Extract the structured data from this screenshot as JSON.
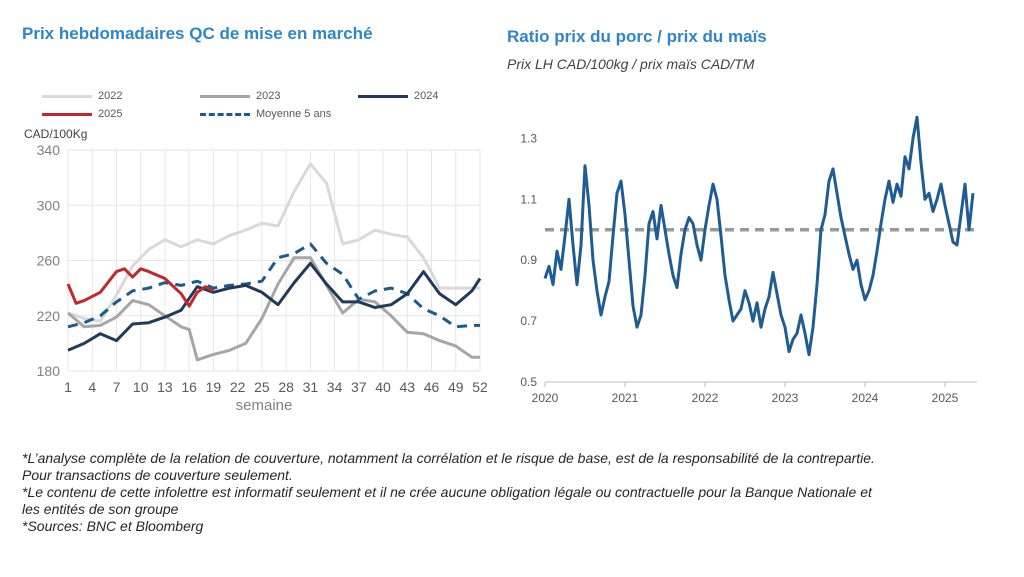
{
  "left": {
    "title": "Prix hebdomadaires QC de mise en marché",
    "unit_label": "CAD/100Kg",
    "legend": [
      {
        "label": "2022",
        "color": "#d9d9d9",
        "dashed": false
      },
      {
        "label": "2023",
        "color": "#a6a6a6",
        "dashed": false
      },
      {
        "label": "2024",
        "color": "#1f3a5a",
        "dashed": false
      },
      {
        "label": "2025",
        "color": "#c0282d",
        "dashed": false
      },
      {
        "label": "Moyenne 5 ans",
        "color": "#1b5a8c",
        "dashed": true
      }
    ]
  },
  "right": {
    "title": "Ratio prix du porc / prix du maïs",
    "subtitle": "Prix LH CAD/100kg / prix maïs CAD/TM"
  },
  "footnotes": [
    "*L’analyse complète de la relation de couverture, notamment la corrélation et le risque de base, est de la responsabilité de la contrepartie. Pour transactions de couverture seulement.",
    "*Le contenu de cette infolettre est informatif seulement et il ne crée aucune obligation légale ou contractuelle pour la Banque Nationale et les entités de son groupe",
    "*Sources: BNC et Bloomberg"
  ],
  "chart_data": [
    {
      "type": "line",
      "title": "Prix hebdomadaires QC de mise en marché",
      "ylabel": "CAD/100Kg",
      "xlabel": "semaine",
      "ylim": [
        180,
        340
      ],
      "xlim": [
        1,
        52
      ],
      "yticks": [
        180,
        220,
        260,
        300,
        340
      ],
      "xticks": [
        1,
        4,
        7,
        10,
        13,
        16,
        19,
        22,
        25,
        28,
        31,
        34,
        37,
        40,
        43,
        46,
        49,
        52
      ],
      "legend_position": "top",
      "grid": true,
      "series": [
        {
          "name": "2022",
          "color": "#d9d9d9",
          "x": [
            1,
            3,
            5,
            7,
            9,
            11,
            13,
            15,
            17,
            19,
            21,
            23,
            25,
            27,
            29,
            31,
            33,
            35,
            37,
            39,
            41,
            43,
            45,
            47,
            49,
            51,
            52
          ],
          "values": [
            222,
            218,
            216,
            235,
            256,
            268,
            275,
            270,
            275,
            272,
            278,
            282,
            287,
            285,
            310,
            330,
            316,
            272,
            275,
            282,
            279,
            277,
            262,
            240,
            240,
            240,
            240
          ]
        },
        {
          "name": "2023",
          "color": "#a6a6a6",
          "x": [
            1,
            3,
            5,
            7,
            9,
            11,
            13,
            15,
            16,
            17,
            19,
            21,
            23,
            25,
            27,
            29,
            31,
            33,
            35,
            37,
            39,
            41,
            43,
            45,
            47,
            49,
            51,
            52
          ],
          "values": [
            222,
            212,
            213,
            219,
            231,
            228,
            220,
            212,
            210,
            188,
            192,
            195,
            200,
            218,
            243,
            262,
            262,
            242,
            222,
            232,
            230,
            220,
            208,
            207,
            202,
            198,
            190,
            190
          ]
        },
        {
          "name": "2024",
          "color": "#1f3a5a",
          "x": [
            1,
            3,
            5,
            7,
            9,
            11,
            13,
            15,
            17,
            19,
            21,
            23,
            25,
            27,
            29,
            31,
            33,
            35,
            37,
            39,
            41,
            43,
            45,
            47,
            49,
            51,
            52
          ],
          "values": [
            195,
            200,
            207,
            202,
            214,
            215,
            219,
            224,
            241,
            237,
            240,
            242,
            237,
            228,
            244,
            258,
            243,
            230,
            230,
            226,
            228,
            236,
            252,
            236,
            228,
            238,
            247
          ]
        },
        {
          "name": "2025",
          "color": "#c0282d",
          "x": [
            1,
            2,
            3,
            5,
            7,
            8,
            9,
            10,
            11,
            13,
            15,
            16,
            17,
            18,
            19
          ],
          "values": [
            243,
            229,
            231,
            237,
            252,
            254,
            248,
            254,
            252,
            247,
            236,
            227,
            237,
            241,
            238
          ]
        },
        {
          "name": "Moyenne 5 ans",
          "color": "#1b5a8c",
          "dashed": true,
          "x": [
            1,
            3,
            5,
            7,
            9,
            11,
            13,
            15,
            17,
            19,
            21,
            23,
            25,
            27,
            29,
            31,
            33,
            35,
            37,
            39,
            41,
            43,
            45,
            47,
            49,
            51,
            52
          ],
          "values": [
            212,
            215,
            220,
            230,
            238,
            240,
            244,
            242,
            245,
            240,
            242,
            243,
            245,
            262,
            265,
            272,
            258,
            250,
            232,
            238,
            240,
            236,
            225,
            220,
            212,
            213,
            213
          ]
        }
      ]
    },
    {
      "type": "line",
      "title": "Ratio prix du porc / prix du maïs",
      "subtitle": "Prix LH CAD/100kg / prix maïs CAD/TM",
      "ylim": [
        0.5,
        1.4
      ],
      "yticks": [
        "0.5",
        "0.7",
        "0.9",
        "1.1",
        "1.3"
      ],
      "xlim": [
        2020.0,
        2025.4
      ],
      "xticks": [
        "2020",
        "2021",
        "2022",
        "2023",
        "2024",
        "2025"
      ],
      "reference_line": {
        "value": 1.0,
        "color": "#999999",
        "dashed": true
      },
      "grid": false,
      "series": [
        {
          "color": "#1f5c94",
          "x": [
            2020.0,
            2020.05,
            2020.1,
            2020.15,
            2020.2,
            2020.25,
            2020.3,
            2020.35,
            2020.4,
            2020.45,
            2020.5,
            2020.55,
            2020.6,
            2020.65,
            2020.7,
            2020.75,
            2020.8,
            2020.85,
            2020.9,
            2020.95,
            2021.0,
            2021.05,
            2021.1,
            2021.15,
            2021.2,
            2021.25,
            2021.3,
            2021.35,
            2021.4,
            2021.45,
            2021.5,
            2021.55,
            2021.6,
            2021.65,
            2021.7,
            2021.75,
            2021.8,
            2021.85,
            2021.9,
            2021.95,
            2022.0,
            2022.05,
            2022.1,
            2022.15,
            2022.2,
            2022.25,
            2022.3,
            2022.35,
            2022.4,
            2022.45,
            2022.5,
            2022.55,
            2022.6,
            2022.65,
            2022.7,
            2022.75,
            2022.8,
            2022.85,
            2022.9,
            2022.95,
            2023.0,
            2023.05,
            2023.1,
            2023.15,
            2023.2,
            2023.25,
            2023.3,
            2023.35,
            2023.4,
            2023.45,
            2023.5,
            2023.55,
            2023.6,
            2023.65,
            2023.7,
            2023.75,
            2023.8,
            2023.85,
            2023.9,
            2023.95,
            2024.0,
            2024.05,
            2024.1,
            2024.15,
            2024.2,
            2024.25,
            2024.3,
            2024.35,
            2024.4,
            2024.45,
            2024.5,
            2024.55,
            2024.6,
            2024.65,
            2024.7,
            2024.75,
            2024.8,
            2024.85,
            2024.9,
            2024.95,
            2025.0,
            2025.05,
            2025.1,
            2025.15,
            2025.2,
            2025.25,
            2025.3,
            2025.35
          ],
          "values": [
            0.84,
            0.88,
            0.82,
            0.93,
            0.87,
            0.98,
            1.1,
            0.95,
            0.82,
            0.95,
            1.21,
            1.08,
            0.9,
            0.8,
            0.72,
            0.78,
            0.83,
            0.98,
            1.12,
            1.16,
            1.05,
            0.9,
            0.75,
            0.68,
            0.72,
            0.85,
            1.02,
            1.06,
            0.97,
            1.08,
            1.0,
            0.92,
            0.85,
            0.81,
            0.92,
            1.0,
            1.04,
            1.02,
            0.95,
            0.9,
            1.0,
            1.08,
            1.15,
            1.1,
            0.98,
            0.85,
            0.77,
            0.7,
            0.72,
            0.74,
            0.8,
            0.76,
            0.7,
            0.76,
            0.68,
            0.74,
            0.78,
            0.86,
            0.79,
            0.72,
            0.68,
            0.6,
            0.64,
            0.66,
            0.72,
            0.66,
            0.59,
            0.68,
            0.82,
            1.0,
            1.05,
            1.16,
            1.2,
            1.12,
            1.04,
            0.98,
            0.92,
            0.87,
            0.9,
            0.82,
            0.77,
            0.8,
            0.85,
            0.93,
            1.02,
            1.1,
            1.16,
            1.09,
            1.15,
            1.11,
            1.24,
            1.2,
            1.3,
            1.37,
            1.22,
            1.1,
            1.12,
            1.06,
            1.1,
            1.15,
            1.08,
            1.02,
            0.96,
            0.95,
            1.05,
            1.15,
            1.0,
            1.12
          ]
        }
      ]
    }
  ]
}
